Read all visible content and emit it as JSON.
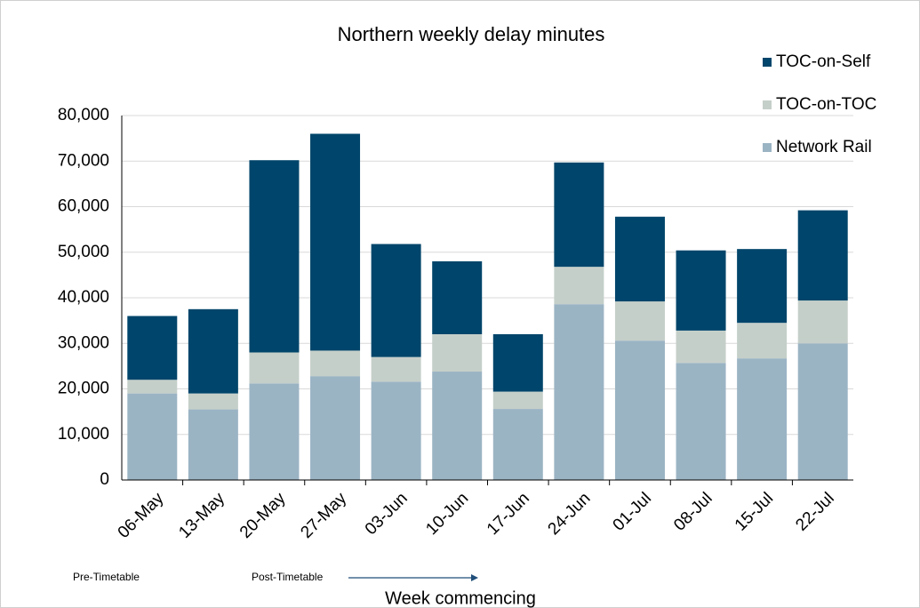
{
  "chart_data": {
    "type": "stacked_bar",
    "title": "Northern weekly delay minutes",
    "x_label": "Week commencing",
    "annotations": [
      "Pre-Timetable",
      "Post-Timetable"
    ],
    "categories": [
      "06-May",
      "13-May",
      "20-May",
      "27-May",
      "03-Jun",
      "10-Jun",
      "17-Jun",
      "24-Jun",
      "01-Jul",
      "08-Jul",
      "15-Jul",
      "22-Jul"
    ],
    "series": [
      {
        "name": "Network Rail",
        "color": "#9bb4c4",
        "values": [
          19000,
          15500,
          21200,
          22800,
          21600,
          23800,
          15600,
          38600,
          30600,
          25700,
          26700,
          30000
        ]
      },
      {
        "name": "TOC-on-TOC",
        "color": "#c5cfc9",
        "values": [
          3000,
          3500,
          6800,
          5600,
          5400,
          8200,
          3800,
          8200,
          8600,
          7100,
          7800,
          9400
        ]
      },
      {
        "name": "TOC-on-Self",
        "color": "#00456b",
        "values": [
          14000,
          18500,
          42200,
          47600,
          24800,
          16000,
          12600,
          22900,
          18600,
          17600,
          16200,
          19800
        ]
      }
    ],
    "ylim": [
      0,
      80000
    ],
    "yticks": [
      0,
      {
        "value": 10000,
        "label": "10,000"
      },
      {
        "value": 20000,
        "label": "20,000"
      },
      {
        "value": 30000,
        "label": "30,000"
      },
      {
        "value": 40000,
        "label": "40,000"
      },
      {
        "value": 50000,
        "label": "50,000"
      },
      {
        "value": 60000,
        "label": "60,000"
      },
      {
        "value": 70000,
        "label": "70,000"
      },
      {
        "value": 80000,
        "label": "80,000"
      }
    ],
    "grid": true,
    "legend": "top-right"
  }
}
